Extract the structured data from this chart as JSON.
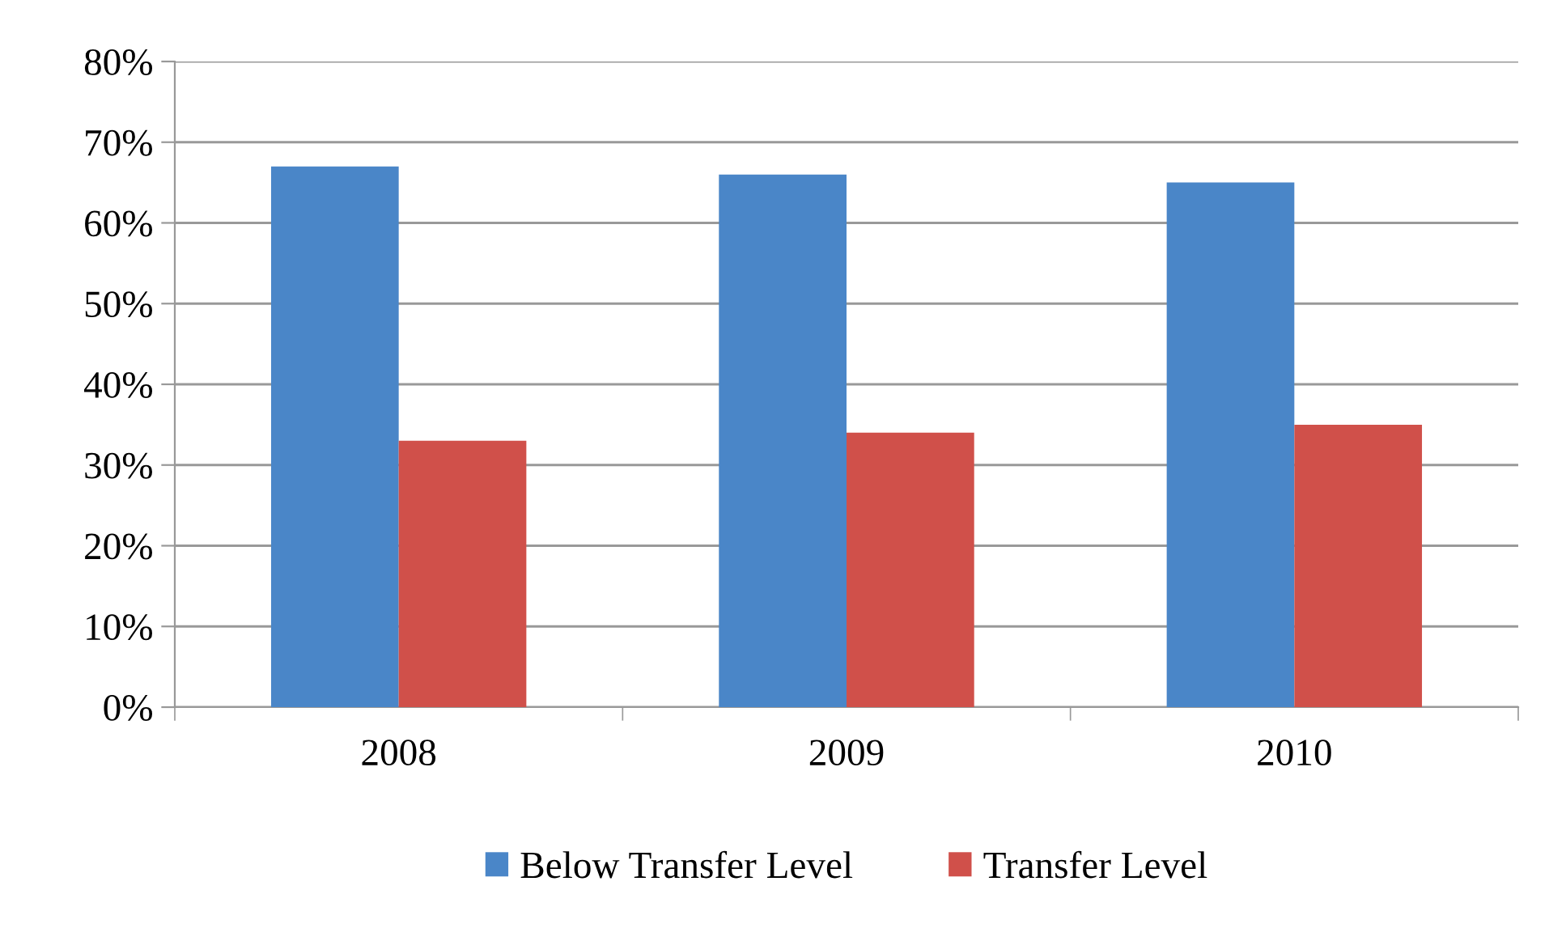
{
  "chart_data": {
    "type": "bar",
    "categories": [
      "2008",
      "2009",
      "2010"
    ],
    "series": [
      {
        "name": "Below Transfer Level",
        "color": "#4a86c8",
        "values": [
          67,
          66,
          65
        ]
      },
      {
        "name": "Transfer Level",
        "color": "#d0504a",
        "values": [
          33,
          34,
          35
        ]
      }
    ],
    "ylim": [
      0,
      80
    ],
    "yticks": [
      {
        "value": 0,
        "label": "0%"
      },
      {
        "value": 10,
        "label": "10%"
      },
      {
        "value": 20,
        "label": "20%"
      },
      {
        "value": 30,
        "label": "30%"
      },
      {
        "value": 40,
        "label": "40%"
      },
      {
        "value": 50,
        "label": "50%"
      },
      {
        "value": 60,
        "label": "60%"
      },
      {
        "value": 70,
        "label": "70%"
      },
      {
        "value": 80,
        "label": "80%"
      }
    ],
    "grid": "y",
    "legend": "bottom"
  }
}
